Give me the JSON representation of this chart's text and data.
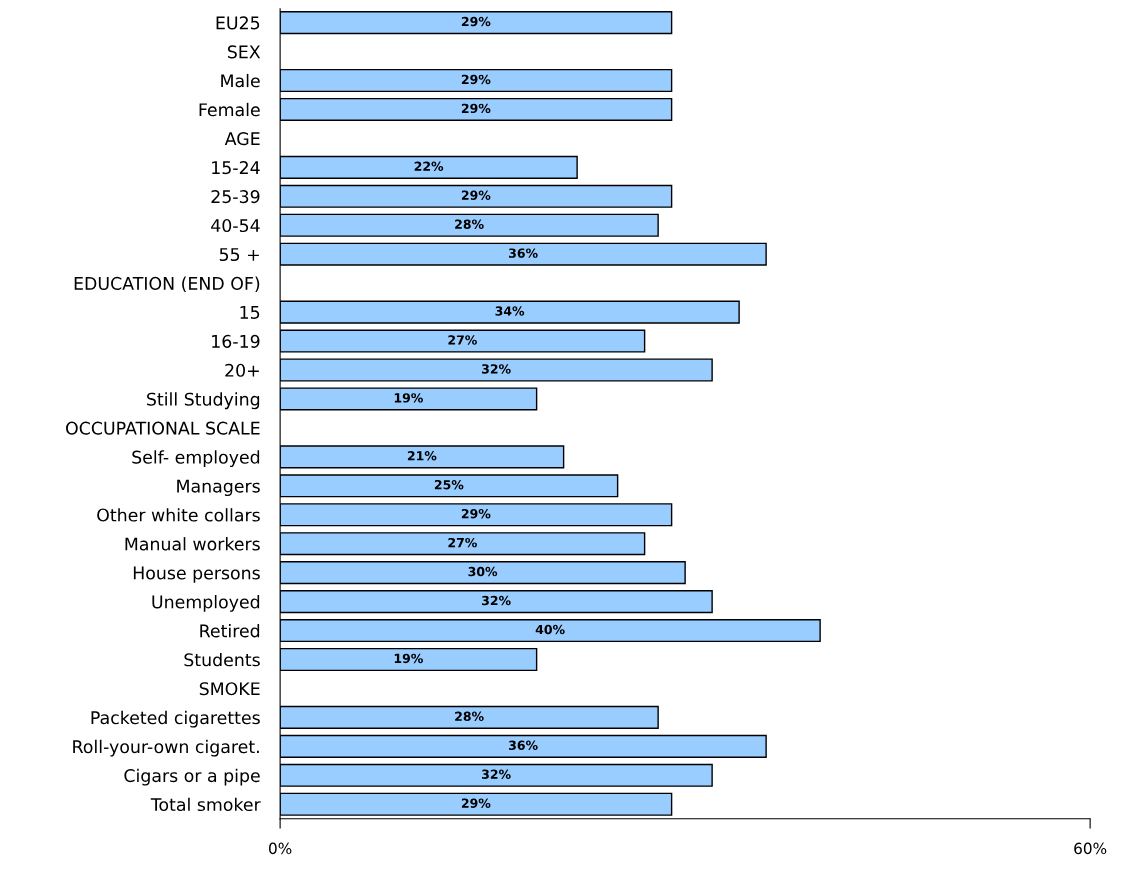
{
  "chart_data": {
    "type": "bar",
    "orientation": "horizontal",
    "categories": [
      "EU25",
      "SEX",
      "Male",
      "Female",
      "AGE",
      "15-24",
      "25-39",
      "40-54",
      "55 +",
      "EDUCATION (END OF)",
      "15",
      "16-19",
      "20+",
      "Still Studying",
      "OCCUPATIONAL SCALE",
      "Self- employed",
      "Managers",
      "Other white collars",
      "Manual workers",
      "House persons",
      "Unemployed",
      "Retired",
      "Students",
      "SMOKE",
      "Packeted cigarettes",
      "Roll-your-own cigaret.",
      "Cigars or a pipe",
      "Total smoker"
    ],
    "values": [
      29,
      null,
      29,
      29,
      null,
      22,
      29,
      28,
      36,
      null,
      34,
      27,
      32,
      19,
      null,
      21,
      25,
      29,
      27,
      30,
      32,
      40,
      19,
      null,
      28,
      36,
      32,
      29
    ],
    "value_labels": [
      "29%",
      null,
      "29%",
      "29%",
      null,
      "22%",
      "29%",
      "28%",
      "36%",
      null,
      "34%",
      "27%",
      "32%",
      "19%",
      null,
      "21%",
      "25%",
      "29%",
      "27%",
      "30%",
      "32%",
      "40%",
      "19%",
      null,
      "28%",
      "36%",
      "32%",
      "29%"
    ],
    "color": "#99ccff",
    "xlim": [
      0,
      60
    ],
    "xticks": [
      {
        "value": 0,
        "label": "0%"
      },
      {
        "value": 60,
        "label": "60%"
      }
    ],
    "grid": false
  }
}
